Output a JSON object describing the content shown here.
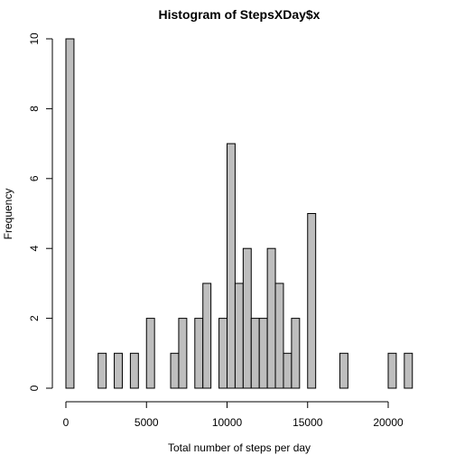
{
  "chart_data": {
    "type": "bar",
    "title": "Histogram of StepsXDay$x",
    "xlabel": "Total number of steps per day",
    "ylabel": "Frequency",
    "bin_width": 500,
    "xlim": [
      0,
      21500
    ],
    "ylim": [
      0,
      10
    ],
    "x_ticks": [
      0,
      5000,
      10000,
      15000,
      20000
    ],
    "y_ticks": [
      0,
      2,
      4,
      6,
      8,
      10
    ],
    "bar_color": "#bebebe",
    "bins": [
      {
        "start": 0,
        "end": 500,
        "count": 10
      },
      {
        "start": 2000,
        "end": 2500,
        "count": 1
      },
      {
        "start": 3000,
        "end": 3500,
        "count": 1
      },
      {
        "start": 4000,
        "end": 4500,
        "count": 1
      },
      {
        "start": 5000,
        "end": 5500,
        "count": 2
      },
      {
        "start": 6500,
        "end": 7000,
        "count": 1
      },
      {
        "start": 7000,
        "end": 7500,
        "count": 2
      },
      {
        "start": 8000,
        "end": 8500,
        "count": 2
      },
      {
        "start": 8500,
        "end": 9000,
        "count": 3
      },
      {
        "start": 9500,
        "end": 10000,
        "count": 2
      },
      {
        "start": 10000,
        "end": 10500,
        "count": 7
      },
      {
        "start": 10500,
        "end": 11000,
        "count": 3
      },
      {
        "start": 11000,
        "end": 11500,
        "count": 4
      },
      {
        "start": 11500,
        "end": 12000,
        "count": 2
      },
      {
        "start": 12000,
        "end": 12500,
        "count": 2
      },
      {
        "start": 12500,
        "end": 13000,
        "count": 4
      },
      {
        "start": 13000,
        "end": 13500,
        "count": 3
      },
      {
        "start": 13500,
        "end": 14000,
        "count": 1
      },
      {
        "start": 14000,
        "end": 14500,
        "count": 2
      },
      {
        "start": 15000,
        "end": 15500,
        "count": 5
      },
      {
        "start": 17000,
        "end": 17500,
        "count": 1
      },
      {
        "start": 20000,
        "end": 20500,
        "count": 1
      },
      {
        "start": 21000,
        "end": 21500,
        "count": 1
      }
    ]
  }
}
